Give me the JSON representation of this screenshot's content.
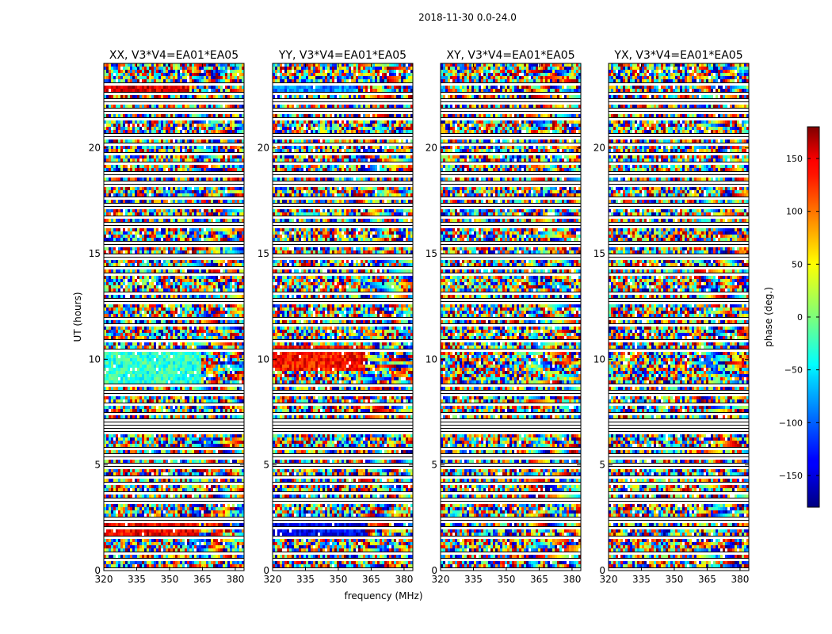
{
  "figure_title": "2018-11-30 0.0-24.0",
  "chart_data": {
    "type": "heatmap",
    "title": "2018-11-30 0.0-24.0",
    "xlabel": "frequency (MHz)",
    "ylabel": "UT (hours)",
    "xlim": [
      320,
      384
    ],
    "ylim": [
      0,
      24
    ],
    "xticks": [
      320,
      335,
      350,
      365,
      380
    ],
    "yticks": [
      0,
      5,
      10,
      15,
      20
    ],
    "panels": [
      {
        "title": "XX, V3*V4=EA01*EA05",
        "correlation": "XX"
      },
      {
        "title": "YY, V3*V4=EA01*EA05",
        "correlation": "YY"
      },
      {
        "title": "XY, V3*V4=EA01*EA05",
        "correlation": "XY"
      },
      {
        "title": "YX, V3*V4=EA01*EA05",
        "correlation": "YX"
      }
    ],
    "colorbar": {
      "label": "phase (deg.)",
      "colormap": "jet",
      "range": [
        -180,
        180
      ],
      "ticks": [
        150,
        100,
        50,
        0,
        -50,
        -100,
        -150
      ],
      "tick_labels": [
        "150",
        "100",
        "50",
        "0",
        "−50",
        "−100",
        "−150"
      ]
    },
    "flagged_rows_ut": [
      0.05,
      0.5,
      0.8,
      1.55,
      2.05,
      2.4,
      3.3,
      3.65,
      4.1,
      4.45,
      4.95,
      5.4,
      5.75,
      6.5,
      6.75,
      7.05,
      7.45,
      7.9,
      8.4,
      8.75,
      10.45,
      10.9,
      11.65,
      11.95,
      12.75,
      13.1,
      14.05,
      14.35,
      14.85,
      15.45,
      16.35,
      16.75,
      17.25,
      17.6,
      18.3,
      18.75,
      19.3,
      19.75,
      20.15,
      20.55,
      21.35,
      21.75,
      22.2,
      22.6,
      23.0
    ],
    "features": [
      {
        "panel": "XX",
        "ut": [
          8.8,
          10.4
        ],
        "freq": [
          320,
          364
        ],
        "phase": -30,
        "note": "coherent cyan-green band"
      },
      {
        "panel": "XX",
        "ut": [
          1.6,
          2.6
        ],
        "freq": [
          320,
          363
        ],
        "phase": 140,
        "note": "coherent red/blue stripes"
      },
      {
        "panel": "XX",
        "ut": [
          22.5,
          22.9
        ],
        "freq": [
          320,
          359
        ],
        "phase": 150,
        "note": "red strip"
      },
      {
        "panel": "YY",
        "ut": [
          9.4,
          10.6
        ],
        "freq": [
          320,
          362
        ],
        "phase": 130,
        "note": "coherent orange-red band"
      },
      {
        "panel": "YY",
        "ut": [
          22.5,
          22.9
        ],
        "freq": [
          320,
          358
        ],
        "phase": -90,
        "note": "cyan strip"
      },
      {
        "panel": "YY",
        "ut": [
          1.6,
          2.6
        ],
        "freq": [
          320,
          362
        ],
        "phase": -140,
        "note": "blue stripes"
      }
    ]
  }
}
